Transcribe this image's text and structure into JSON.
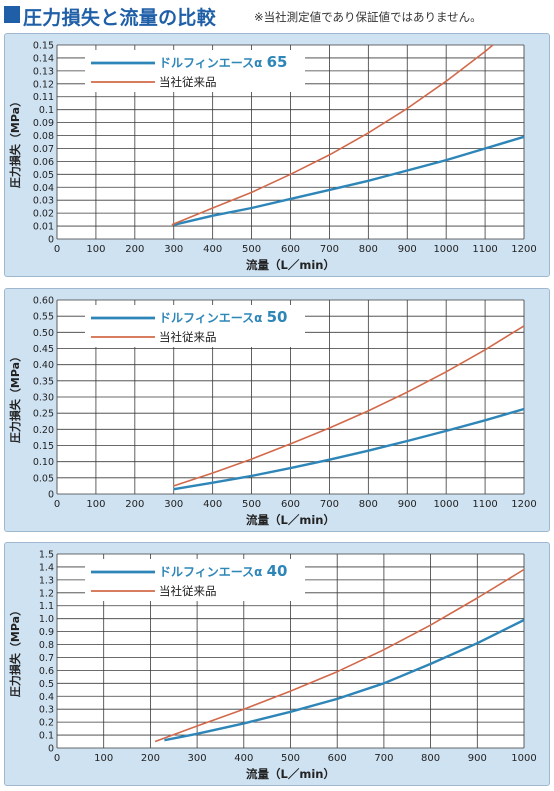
{
  "header": {
    "title": "圧力損失と流量の比較",
    "note": "※当社測定値であり保証値ではありません。"
  },
  "colors": {
    "dolphin": "#2e86b8",
    "conventional": "#d2694a",
    "panel_bg": "#cfe2f2",
    "title": "#1f5fa8"
  },
  "chart_data": [
    {
      "type": "line",
      "title": "",
      "xlabel": "流量（L／min）",
      "ylabel": "圧力損失（MPa）",
      "xlim": [
        0,
        1200
      ],
      "ylim": [
        0,
        0.15
      ],
      "xticks": [
        0,
        100,
        200,
        300,
        400,
        500,
        600,
        700,
        800,
        900,
        1000,
        1100,
        1200
      ],
      "xtick_labels": [
        "0",
        "100",
        "200",
        "300",
        "400",
        "500",
        "600",
        "700",
        "800",
        "900",
        "1000",
        "1100",
        "1200"
      ],
      "yticks": [
        0,
        0.01,
        0.02,
        0.03,
        0.04,
        0.05,
        0.06,
        0.07,
        0.08,
        0.09,
        0.1,
        0.11,
        0.12,
        0.13,
        0.14,
        0.15
      ],
      "ytick_labels": [
        "0",
        "0.01",
        "0.02",
        "0.03",
        "0.04",
        "0.05",
        "0.06",
        "0.07",
        "0.08",
        "0.09",
        "0.1",
        "0.11",
        "0.12",
        "0.13",
        "0.14",
        "0.15"
      ],
      "grid": true,
      "legend_position": "top-left",
      "series": [
        {
          "name": "ドルフィンエースα 65",
          "label_prefix": "ドルフィンエースα",
          "label_model": "65",
          "color": "#2e86b8",
          "x": [
            300,
            400,
            500,
            600,
            700,
            800,
            900,
            1000,
            1100,
            1200
          ],
          "y": [
            0.011,
            0.018,
            0.024,
            0.031,
            0.038,
            0.045,
            0.053,
            0.061,
            0.07,
            0.079
          ]
        },
        {
          "name": "当社従来品",
          "color": "#d2694a",
          "x": [
            295,
            400,
            500,
            600,
            700,
            800,
            900,
            1000,
            1100,
            1120
          ],
          "y": [
            0.011,
            0.024,
            0.036,
            0.05,
            0.065,
            0.082,
            0.101,
            0.122,
            0.145,
            0.15
          ]
        }
      ]
    },
    {
      "type": "line",
      "title": "",
      "xlabel": "流量（L／min）",
      "ylabel": "圧力損失（MPa）",
      "xlim": [
        0,
        1200
      ],
      "ylim": [
        0,
        0.6
      ],
      "xticks": [
        0,
        100,
        200,
        300,
        400,
        500,
        600,
        700,
        800,
        900,
        1000,
        1100,
        1200
      ],
      "xtick_labels": [
        "0",
        "100",
        "200",
        "300",
        "400",
        "500",
        "600",
        "700",
        "800",
        "900",
        "1000",
        "1100",
        "1200"
      ],
      "yticks": [
        0,
        0.05,
        0.1,
        0.15,
        0.2,
        0.25,
        0.3,
        0.35,
        0.4,
        0.45,
        0.5,
        0.55,
        0.6
      ],
      "ytick_labels": [
        "0",
        "0.05",
        "0.10",
        "0.15",
        "0.20",
        "0.25",
        "0.30",
        "0.35",
        "0.40",
        "0.45",
        "0.50",
        "0.55",
        "0.60"
      ],
      "grid": true,
      "legend_position": "top-left",
      "series": [
        {
          "name": "ドルフィンエースα 50",
          "label_prefix": "ドルフィンエースα",
          "label_model": "50",
          "color": "#2e86b8",
          "x": [
            300,
            400,
            500,
            600,
            700,
            800,
            900,
            1000,
            1100,
            1200
          ],
          "y": [
            0.015,
            0.035,
            0.056,
            0.08,
            0.106,
            0.134,
            0.164,
            0.195,
            0.228,
            0.263
          ]
        },
        {
          "name": "当社従来品",
          "color": "#d2694a",
          "x": [
            300,
            400,
            500,
            600,
            700,
            800,
            900,
            1000,
            1100,
            1200
          ],
          "y": [
            0.025,
            0.065,
            0.108,
            0.155,
            0.204,
            0.257,
            0.315,
            0.378,
            0.446,
            0.52
          ]
        }
      ]
    },
    {
      "type": "line",
      "title": "",
      "xlabel": "流量（L／min）",
      "ylabel": "圧力損失（MPa）",
      "xlim": [
        0,
        1000
      ],
      "ylim": [
        0,
        1.5
      ],
      "xticks": [
        0,
        100,
        200,
        300,
        400,
        500,
        600,
        700,
        800,
        900,
        1000
      ],
      "xtick_labels": [
        "0",
        "100",
        "200",
        "300",
        "400",
        "500",
        "600",
        "700",
        "800",
        "900",
        "1000"
      ],
      "yticks": [
        0,
        0.1,
        0.2,
        0.3,
        0.4,
        0.5,
        0.6,
        0.7,
        0.8,
        0.9,
        1.0,
        1.1,
        1.2,
        1.3,
        1.4,
        1.5
      ],
      "ytick_labels": [
        "0",
        "0.1",
        "0.2",
        "0.3",
        "0.4",
        "0.5",
        "0.6",
        "0.7",
        "0.8",
        "0.9",
        "1.0",
        "1.1",
        "1.2",
        "1.3",
        "1.4",
        "1.5"
      ],
      "grid": true,
      "legend_position": "top-left",
      "series": [
        {
          "name": "ドルフィンエースα 40",
          "label_prefix": "ドルフィンエースα",
          "label_model": "40",
          "color": "#2e86b8",
          "x": [
            230,
            300,
            400,
            500,
            600,
            700,
            800,
            900,
            1000
          ],
          "y": [
            0.06,
            0.11,
            0.19,
            0.28,
            0.38,
            0.5,
            0.65,
            0.81,
            0.99
          ]
        },
        {
          "name": "当社従来品",
          "color": "#d2694a",
          "x": [
            210,
            300,
            400,
            500,
            600,
            700,
            800,
            900,
            1000
          ],
          "y": [
            0.05,
            0.17,
            0.3,
            0.44,
            0.59,
            0.76,
            0.95,
            1.16,
            1.38
          ]
        }
      ]
    }
  ]
}
